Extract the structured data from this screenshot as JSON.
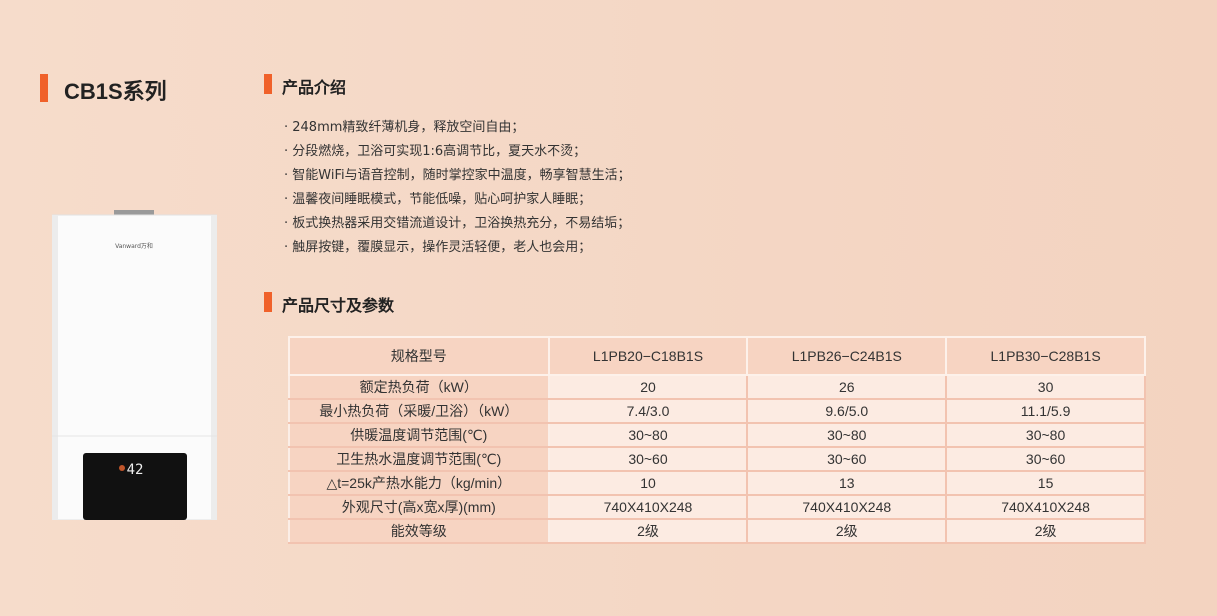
{
  "series_title": "CB1S系列",
  "intro": {
    "title": "产品介绍",
    "items": [
      "· 248mm精致纤薄机身，释放空间自由；",
      "· 分段燃烧，卫浴可实现1:6高调节比，夏天水不烫；",
      "· 智能WiFi与语音控制，随时掌控家中温度，畅享智慧生活；",
      "· 温馨夜间睡眠模式，节能低噪，贴心呵护家人睡眠；",
      "· 板式换热器采用交错流道设计，卫浴换热充分，不易结垢；",
      "· 触屏按键，覆膜显示，操作灵活轻便，老人也会用；"
    ]
  },
  "specs": {
    "title": "产品尺寸及参数",
    "header": [
      "规格型号",
      "L1PB20−C18B1S",
      "L1PB26−C24B1S",
      "L1PB30−C28B1S"
    ],
    "rows": [
      [
        "额定热负荷（kW）",
        "20",
        "26",
        "30"
      ],
      [
        "最小热负荷（采暖/卫浴）（kW）",
        "7.4/3.0",
        "9.6/5.0",
        "11.1/5.9"
      ],
      [
        "供暖温度调节范围(℃)",
        "30~80",
        "30~80",
        "30~80"
      ],
      [
        "卫生热水温度调节范围(℃)",
        "30~60",
        "30~60",
        "30~60"
      ],
      [
        "△t=25k产热水能力（kg/min）",
        "10",
        "13",
        "15"
      ],
      [
        "外观尺寸(高x宽x厚)(mm)",
        "740X410X248",
        "740X410X248",
        "740X410X248"
      ],
      [
        "能效等级",
        "2级",
        "2级",
        "2级"
      ]
    ]
  },
  "product": {
    "logo": "Vanward万和",
    "display": "42"
  },
  "colors": {
    "accent": "#f0612a"
  }
}
